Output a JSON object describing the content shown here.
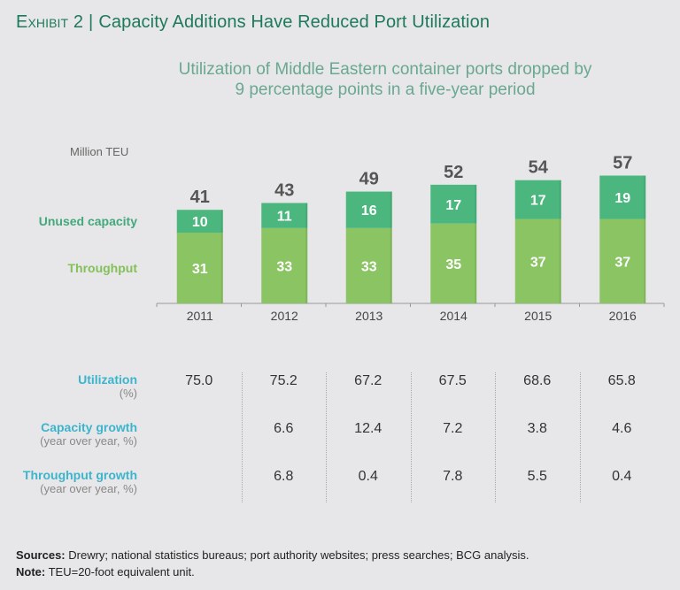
{
  "header": {
    "exhibit_label": "Exhibit 2",
    "title": "Capacity Additions Have Reduced Port Utilization"
  },
  "subtitle": {
    "line1": "Utilization of Middle Eastern container ports dropped by",
    "line2": "9 percentage points in a five-year period"
  },
  "colors": {
    "unused": "#4bb77f",
    "throughput": "#8ac463",
    "total_label": "#555555",
    "title": "#1d7a58",
    "table_label": "#3cb4cc"
  },
  "chart_data": {
    "type": "bar",
    "stacked": true,
    "title": "Utilization of Middle Eastern container ports dropped by 9 percentage points in a five-year period",
    "ylabel": "Million TEU",
    "xlabel": "",
    "categories": [
      "2011",
      "2012",
      "2013",
      "2014",
      "2015",
      "2016"
    ],
    "series": [
      {
        "name": "Throughput",
        "values": [
          31,
          33,
          33,
          35,
          37,
          37
        ]
      },
      {
        "name": "Unused capacity",
        "values": [
          10,
          11,
          16,
          17,
          17,
          19
        ]
      }
    ],
    "totals": [
      41,
      43,
      49,
      52,
      54,
      57
    ],
    "ylim": [
      0,
      57
    ],
    "grid": false,
    "legend": "left"
  },
  "table": {
    "rows": [
      {
        "label": "Utilization",
        "sublabel": "(%)",
        "values": [
          "75.0",
          "75.2",
          "67.2",
          "67.5",
          "68.6",
          "65.8"
        ]
      },
      {
        "label": "Capacity growth",
        "sublabel": "(year over year, %)",
        "values": [
          "",
          "6.6",
          "12.4",
          "7.2",
          "3.8",
          "4.6"
        ]
      },
      {
        "label": "Throughput growth",
        "sublabel": "(year over year, %)",
        "values": [
          "",
          "6.8",
          "0.4",
          "7.8",
          "5.5",
          "0.4"
        ]
      }
    ]
  },
  "footer": {
    "sources_label": "Sources:",
    "sources_text": "Drewry; national statistics bureaus; port authority websites; press searches; BCG analysis.",
    "note_label": "Note:",
    "note_text": "TEU=20-foot equivalent unit."
  }
}
